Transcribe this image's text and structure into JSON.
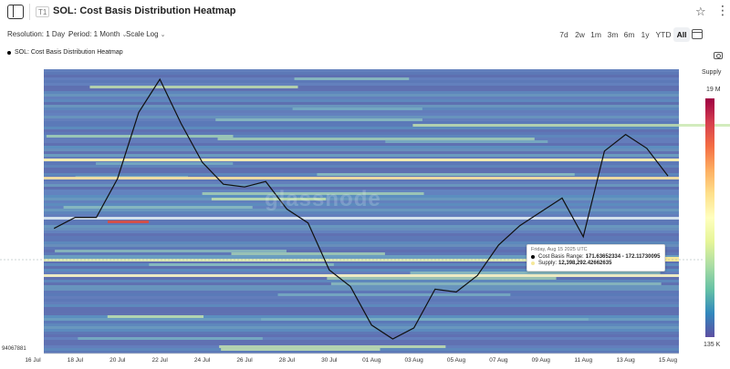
{
  "header": {
    "sidebar_toggle_icon": "sidebar-toggle-icon",
    "badge": "T1",
    "title": "SOL: Cost Basis Distribution Heatmap",
    "star_icon": "star-icon",
    "more_icon": "more-vertical-icon"
  },
  "toolbar": {
    "resolution": "Resolution: 1 Day",
    "period": "Period: 1 Month",
    "scale": "Scale Log",
    "ranges": [
      "7d",
      "2w",
      "1m",
      "3m",
      "6m",
      "1y",
      "YTD",
      "All"
    ],
    "active_range": "All",
    "calendar_icon": "calendar-icon"
  },
  "legend": {
    "series": "SOL: Cost Basis Distribution Heatmap",
    "camera_icon": "camera-icon"
  },
  "color_scale": {
    "title": "Supply",
    "max": "19 M",
    "min": "135 K"
  },
  "y_axis": {
    "min_label": "94067881"
  },
  "watermark": "glassnode",
  "tooltip": {
    "date": "Friday, Aug 15 2025 UTC",
    "range_label": "Cost Basis Range:",
    "range_value": "171.63652334 - 172.11730095",
    "supply_label": "Supply:",
    "supply_value": "12,398,292.42662635"
  },
  "chart_data": {
    "type": "heatmap",
    "title": "SOL: Cost Basis Distribution Heatmap",
    "x_ticks": [
      "16 Jul",
      "18 Jul",
      "20 Jul",
      "22 Jul",
      "24 Jul",
      "26 Jul",
      "28 Jul",
      "30 Jul",
      "01 Aug",
      "03 Aug",
      "05 Aug",
      "07 Aug",
      "09 Aug",
      "11 Aug",
      "13 Aug",
      "15 Aug"
    ],
    "price_line": {
      "x": [
        "17 Jul",
        "18 Jul",
        "19 Jul",
        "20 Jul",
        "21 Jul",
        "22 Jul",
        "23 Jul",
        "24 Jul",
        "25 Jul",
        "26 Jul",
        "27 Jul",
        "28 Jul",
        "29 Jul",
        "30 Jul",
        "31 Jul",
        "01 Aug",
        "02 Aug",
        "03 Aug",
        "04 Aug",
        "05 Aug",
        "06 Aug",
        "07 Aug",
        "08 Aug",
        "09 Aug",
        "10 Aug",
        "11 Aug",
        "12 Aug",
        "13 Aug",
        "14 Aug",
        "15 Aug"
      ],
      "y": [
        179,
        181,
        181,
        188,
        200,
        206,
        198,
        191,
        187,
        186.5,
        187.5,
        182.5,
        180,
        171.5,
        168.5,
        161.5,
        159,
        161,
        168,
        167.5,
        170.5,
        176,
        179.5,
        182,
        184.5,
        177.5,
        193,
        196,
        193.5,
        188.5
      ]
    },
    "color_scale": {
      "min": "135 K",
      "max": "19 M"
    }
  }
}
